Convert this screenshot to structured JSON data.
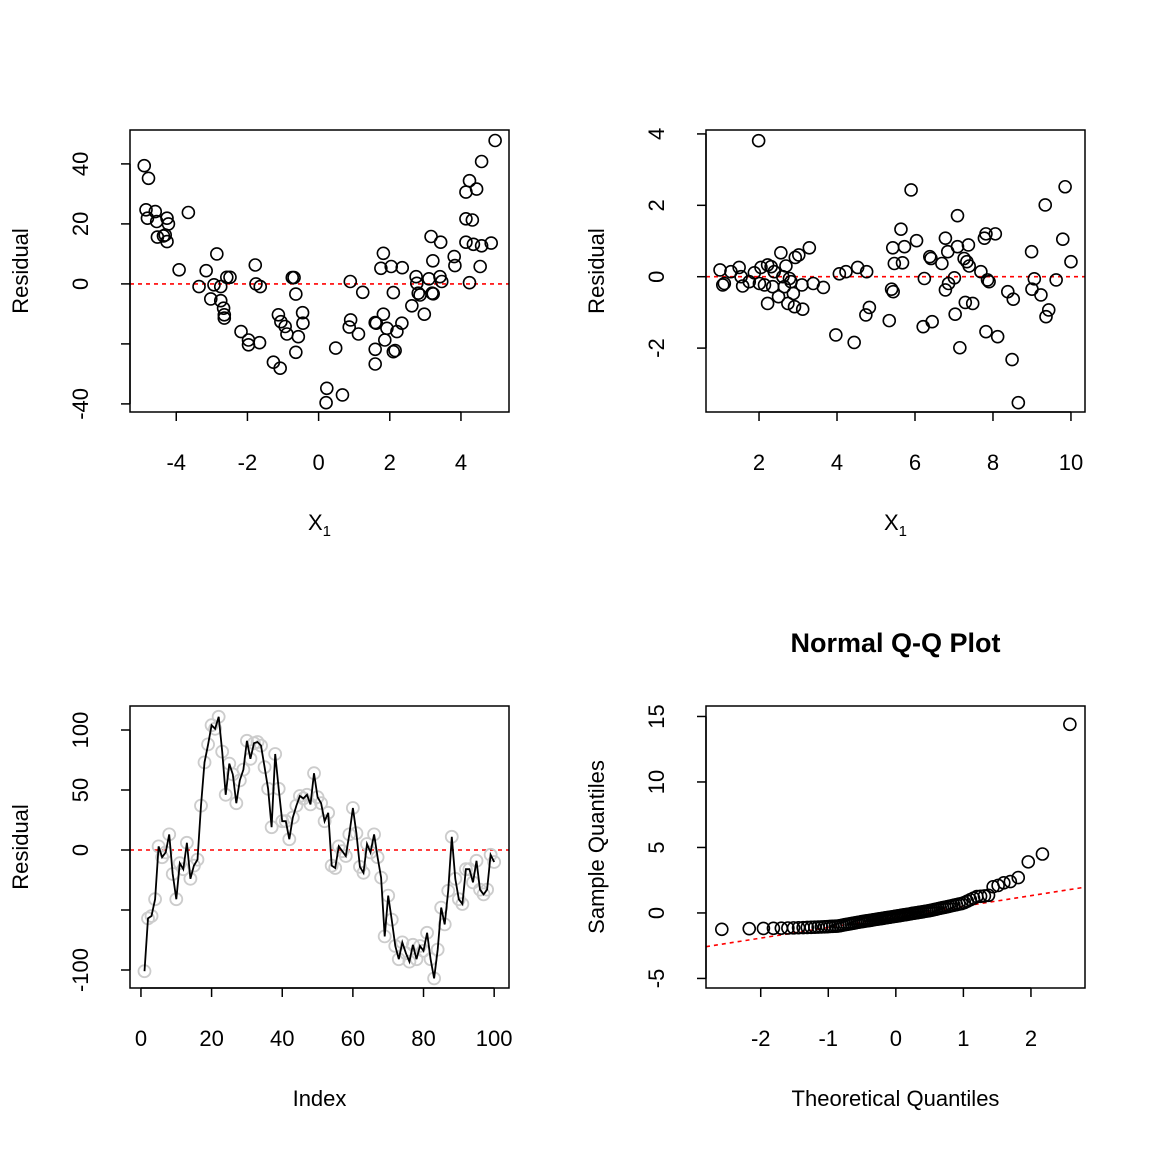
{
  "chart_data": [
    {
      "type": "scatter",
      "title": "",
      "xlabel": "X",
      "xlabel_sub": "1",
      "ylabel": "Residual",
      "xlim": [
        -5.3,
        5.35
      ],
      "ylim": [
        -42.7,
        51.3
      ],
      "xticks": [
        -4,
        -2,
        0,
        2,
        4
      ],
      "xtick_labels": [
        "-4",
        "-2",
        "0",
        "2",
        "4"
      ],
      "yticks": [
        -40,
        -20,
        0,
        20,
        40
      ],
      "ytick_labels": [
        "-40",
        "",
        "0",
        "20",
        "40"
      ],
      "reference_line": {
        "type": "h",
        "y": 0,
        "color": "#ff0000",
        "style": "dotted"
      },
      "points_color": "#000000",
      "x": [
        -4.9,
        -4.78,
        -4.85,
        -4.81,
        -4.59,
        -4.55,
        -4.26,
        -4.22,
        -4.53,
        -4.36,
        -4.26,
        -4.31,
        -3.66,
        -3.92,
        -3.36,
        -3.16,
        -3.03,
        -2.94,
        -2.75,
        -2.86,
        -2.75,
        -2.67,
        -2.65,
        -2.65,
        -2.58,
        -2.49,
        -2.18,
        -1.97,
        -1.97,
        -1.66,
        -1.78,
        -1.76,
        -1.64,
        -1.27,
        -1.08,
        -1.13,
        -1.06,
        -0.94,
        -0.89,
        -0.74,
        -0.69,
        -0.64,
        -0.57,
        -0.45,
        -0.44,
        -0.64,
        0.23,
        0.21,
        0.67,
        0.48,
        0.89,
        0.9,
        0.86,
        1.12,
        1.24,
        1.59,
        1.62,
        1.82,
        1.92,
        1.86,
        1.59,
        1.59,
        2.1,
        2.15,
        2.2,
        2.34,
        1.82,
        1.75,
        2.04,
        2.35,
        2.1,
        2.62,
        2.74,
        2.76,
        2.8,
        2.85,
        2.97,
        3.1,
        3.16,
        3.19,
        3.22,
        3.21,
        3.41,
        3.46,
        3.43,
        3.81,
        3.83,
        4.14,
        4.24,
        4.44,
        4.14,
        4.32,
        4.14,
        4.35,
        4.58,
        4.85,
        4.54,
        4.24,
        4.58,
        4.96
      ],
      "y": [
        39.4,
        35.2,
        24.7,
        21.9,
        24.1,
        20.8,
        21.9,
        20.0,
        15.6,
        16.0,
        14.1,
        16.3,
        23.8,
        4.7,
        -0.9,
        4.4,
        -5.0,
        -0.3,
        -0.9,
        10.0,
        -5.6,
        -8.1,
        -10.3,
        -11.4,
        2.2,
        2.2,
        -15.9,
        -18.7,
        -20.3,
        -19.6,
        6.3,
        0.0,
        -0.9,
        -26.1,
        -28.1,
        -10.3,
        -12.6,
        -14.2,
        -16.7,
        2.1,
        2.1,
        -3.4,
        -17.6,
        -9.6,
        -13.1,
        -22.8,
        -34.8,
        -39.6,
        -37.0,
        -21.4,
        0.8,
        -12.0,
        -14.4,
        -16.7,
        -2.8,
        -12.9,
        -13.1,
        -10.1,
        -14.8,
        -18.7,
        -21.8,
        -26.7,
        -22.6,
        -22.2,
        -15.9,
        -13.1,
        10.2,
        5.2,
        5.8,
        5.4,
        -2.9,
        -7.3,
        2.4,
        0.2,
        -3.1,
        -3.7,
        -10.1,
        1.7,
        15.8,
        -3.1,
        -3.3,
        7.7,
        2.4,
        0.8,
        13.9,
        9.1,
        6.1,
        30.6,
        34.4,
        31.6,
        21.7,
        21.3,
        13.9,
        13.2,
        12.7,
        13.6,
        5.8,
        0.4,
        40.8,
        47.8
      ]
    },
    {
      "type": "scatter",
      "title": "",
      "xlabel": "X",
      "xlabel_sub": "1",
      "ylabel": "Residual",
      "xlim": [
        0.64,
        10.36
      ],
      "ylim": [
        -3.79,
        4.11
      ],
      "xticks": [
        2,
        4,
        6,
        8,
        10
      ],
      "xtick_labels": [
        "2",
        "4",
        "6",
        "8",
        "10"
      ],
      "yticks": [
        -2,
        0,
        2,
        4
      ],
      "ytick_labels": [
        "-2",
        "0",
        "2",
        "4"
      ],
      "reference_line": {
        "type": "h",
        "y": 0,
        "color": "#ff0000",
        "style": "dotted"
      },
      "points_color": "#000000",
      "x": [
        1.99,
        1.0,
        1.11,
        1.07,
        1.28,
        1.49,
        1.54,
        1.58,
        1.75,
        1.88,
        2.01,
        2.05,
        2.14,
        2.22,
        2.31,
        2.22,
        2.35,
        2.39,
        2.5,
        2.56,
        2.61,
        2.65,
        2.69,
        2.74,
        2.78,
        2.82,
        2.88,
        2.91,
        2.93,
        3.02,
        3.1,
        3.12,
        3.29,
        3.39,
        3.65,
        3.97,
        4.06,
        4.23,
        4.44,
        4.53,
        4.74,
        4.83,
        4.76,
        5.34,
        5.4,
        5.44,
        5.43,
        5.47,
        5.68,
        5.64,
        5.73,
        5.9,
        6.04,
        6.21,
        6.24,
        6.38,
        6.41,
        6.44,
        6.69,
        6.78,
        6.78,
        6.84,
        6.86,
        7.01,
        7.03,
        7.09,
        7.09,
        7.15,
        7.29,
        7.26,
        7.33,
        7.37,
        7.39,
        7.48,
        7.69,
        7.78,
        7.82,
        7.82,
        7.86,
        7.9,
        8.06,
        8.12,
        8.38,
        8.49,
        8.52,
        8.65,
        8.99,
        9.06,
        9.0,
        9.23,
        9.34,
        9.36,
        9.43,
        9.62,
        9.79,
        9.85,
        10.0
      ],
      "y": [
        3.81,
        0.19,
        -0.19,
        -0.23,
        0.14,
        0.26,
        0.0,
        -0.26,
        -0.14,
        0.11,
        -0.19,
        0.26,
        -0.23,
        0.33,
        0.28,
        -0.75,
        -0.28,
        0.14,
        -0.56,
        0.67,
        0.0,
        -0.28,
        0.3,
        -0.75,
        -0.05,
        -0.14,
        -0.47,
        -0.84,
        0.54,
        0.61,
        -0.23,
        -0.91,
        0.81,
        -0.19,
        -0.3,
        -1.63,
        0.08,
        0.14,
        -1.84,
        0.26,
        -1.07,
        -0.86,
        0.14,
        -1.23,
        -0.35,
        -0.42,
        0.81,
        0.37,
        0.39,
        1.33,
        0.84,
        2.43,
        1.01,
        -1.4,
        -0.05,
        0.56,
        0.51,
        -1.26,
        0.37,
        1.08,
        -0.37,
        0.7,
        -0.19,
        -0.03,
        -1.05,
        1.71,
        0.84,
        -1.99,
        -0.72,
        0.51,
        0.42,
        0.89,
        0.3,
        -0.75,
        0.14,
        1.08,
        1.2,
        -1.54,
        -0.09,
        -0.14,
        1.2,
        -1.68,
        -0.42,
        -2.32,
        -0.63,
        -3.53,
        0.7,
        -0.06,
        -0.35,
        -0.51,
        2.01,
        -1.12,
        -0.93,
        -0.09,
        1.05,
        2.52,
        0.42
      ]
    },
    {
      "type": "line",
      "title": "",
      "xlabel": "Index",
      "ylabel": "Residual",
      "xlim": [
        -3.1,
        104.2
      ],
      "ylim": [
        -115,
        120
      ],
      "xticks": [
        0,
        20,
        40,
        60,
        80,
        100
      ],
      "xtick_labels": [
        "0",
        "20",
        "40",
        "60",
        "80",
        "100"
      ],
      "yticks": [
        -100,
        -50,
        0,
        50,
        100
      ],
      "ytick_labels": [
        "-100",
        "",
        "0",
        "50",
        "100"
      ],
      "reference_line": {
        "type": "h",
        "y": 0,
        "color": "#ff0000",
        "style": "dotted"
      },
      "points_color": "#cccccc",
      "line_color": "#000000",
      "y": [
        -101,
        -57,
        -55,
        -41,
        3,
        -6,
        -2,
        13,
        -20,
        -41,
        -11,
        -16,
        6,
        -24,
        -13,
        -8,
        37,
        73,
        88,
        104,
        101,
        111,
        82,
        46,
        72,
        63,
        39,
        58,
        67,
        91,
        76,
        89,
        90,
        87,
        69,
        51,
        19,
        80,
        51,
        24,
        24,
        9,
        27,
        37,
        45,
        43,
        46,
        38,
        64,
        44,
        39,
        24,
        31,
        -13,
        -15,
        3,
        -1,
        -5,
        13,
        35,
        14,
        -14,
        -19,
        5,
        -2,
        13,
        -6,
        -23,
        -72,
        -38,
        -58,
        -80,
        -91,
        -77,
        -86,
        -93,
        -79,
        -91,
        -80,
        -84,
        -69,
        -91,
        -107,
        -83,
        -48,
        -62,
        -34,
        11,
        -24,
        -41,
        -45,
        -16,
        -16,
        -27,
        -9,
        -33,
        -37,
        -33,
        -4,
        -10
      ]
    },
    {
      "type": "scatter",
      "title": "Normal Q-Q Plot",
      "xlabel": "Theoretical Quantiles",
      "ylabel": "Sample Quantiles",
      "xlim": [
        -2.81,
        2.8
      ],
      "ylim": [
        -5.73,
        15.8
      ],
      "xticks": [
        -2,
        -1,
        0,
        1,
        2
      ],
      "xtick_labels": [
        "-2",
        "-1",
        "0",
        "1",
        "2"
      ],
      "yticks": [
        -5,
        0,
        5,
        10,
        15
      ],
      "ytick_labels": [
        "-5",
        "0",
        "5",
        "10",
        "15"
      ],
      "reference_line": {
        "type": "ab",
        "intercept": -0.3,
        "slope": 0.81,
        "color": "#ff0000",
        "style": "dotted"
      },
      "points_color": "#000000",
      "x": [
        -2.576,
        -2.17,
        -1.96,
        -1.812,
        -1.695,
        -1.598,
        -1.514,
        -1.44,
        -1.372,
        -1.311,
        -1.254,
        -1.2,
        -1.15,
        -1.103,
        -1.058,
        -1.015,
        -0.974,
        -0.935,
        -0.896,
        -0.86,
        -0.824,
        -0.789,
        -0.755,
        -0.722,
        -0.69,
        -0.659,
        -0.628,
        -0.598,
        -0.568,
        -0.539,
        -0.51,
        -0.482,
        -0.454,
        -0.426,
        -0.399,
        -0.372,
        -0.345,
        -0.319,
        -0.292,
        -0.266,
        -0.24,
        -0.215,
        -0.189,
        -0.164,
        -0.138,
        -0.113,
        -0.088,
        -0.063,
        -0.038,
        -0.013,
        0.013,
        0.038,
        0.063,
        0.088,
        0.113,
        0.138,
        0.164,
        0.189,
        0.215,
        0.24,
        0.266,
        0.292,
        0.319,
        0.345,
        0.372,
        0.399,
        0.426,
        0.454,
        0.482,
        0.51,
        0.539,
        0.568,
        0.598,
        0.628,
        0.659,
        0.69,
        0.722,
        0.755,
        0.789,
        0.824,
        0.86,
        0.896,
        0.935,
        0.974,
        1.015,
        1.058,
        1.103,
        1.15,
        1.2,
        1.254,
        1.311,
        1.372,
        1.44,
        1.514,
        1.598,
        1.695,
        1.812,
        1.96,
        2.17,
        2.576
      ],
      "y": [
        -1.25,
        -1.2,
        -1.18,
        -1.17,
        -1.16,
        -1.15,
        -1.14,
        -1.13,
        -1.12,
        -1.11,
        -1.1,
        -1.09,
        -1.08,
        -1.07,
        -1.06,
        -1.05,
        -1.03,
        -1.02,
        -1.01,
        -1.0,
        -0.97,
        -0.93,
        -0.9,
        -0.87,
        -0.84,
        -0.81,
        -0.78,
        -0.75,
        -0.72,
        -0.7,
        -0.67,
        -0.65,
        -0.62,
        -0.6,
        -0.58,
        -0.56,
        -0.53,
        -0.51,
        -0.49,
        -0.47,
        -0.45,
        -0.43,
        -0.41,
        -0.38,
        -0.36,
        -0.34,
        -0.32,
        -0.3,
        -0.28,
        -0.26,
        -0.24,
        -0.22,
        -0.2,
        -0.17,
        -0.15,
        -0.13,
        -0.11,
        -0.09,
        -0.07,
        -0.04,
        -0.02,
        0.0,
        0.02,
        0.05,
        0.07,
        0.09,
        0.12,
        0.14,
        0.16,
        0.19,
        0.22,
        0.26,
        0.29,
        0.33,
        0.36,
        0.4,
        0.43,
        0.47,
        0.51,
        0.55,
        0.59,
        0.63,
        0.68,
        0.72,
        0.79,
        0.9,
        1.01,
        1.13,
        1.25,
        1.27,
        1.3,
        1.35,
        2.0,
        2.1,
        2.3,
        2.4,
        2.7,
        3.9,
        4.5,
        14.4
      ]
    }
  ]
}
